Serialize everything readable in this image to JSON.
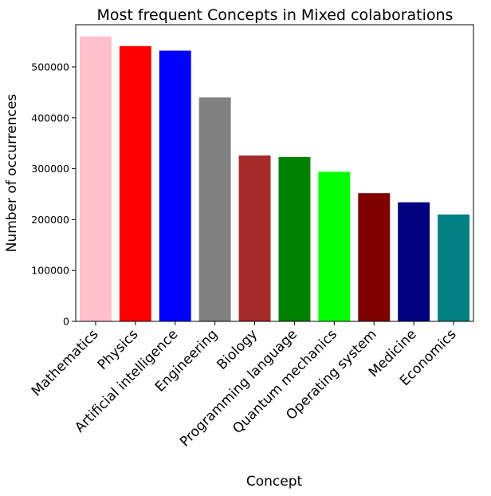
{
  "chart_data": {
    "type": "bar",
    "title": "Most frequent Concepts in Mixed colaborations",
    "xlabel": "Concept",
    "ylabel": "Number of occurrences",
    "categories": [
      "Mathematics",
      "Physics",
      "Artificial intelligence",
      "Engineering",
      "Biology",
      "Programming language",
      "Quantum mechanics",
      "Operating system",
      "Medicine",
      "Economics"
    ],
    "values": [
      560000,
      541000,
      532000,
      440000,
      326000,
      323000,
      294000,
      252000,
      234000,
      210000
    ],
    "colors": [
      "#ffc0cb",
      "#ff0000",
      "#0000ff",
      "#808080",
      "#a52a2a",
      "#008000",
      "#00ff00",
      "#800000",
      "#000080",
      "#008080"
    ],
    "ylim": [
      0,
      583000
    ],
    "yticks": [
      0,
      100000,
      200000,
      300000,
      400000,
      500000
    ],
    "grid": false,
    "legend": "none"
  }
}
